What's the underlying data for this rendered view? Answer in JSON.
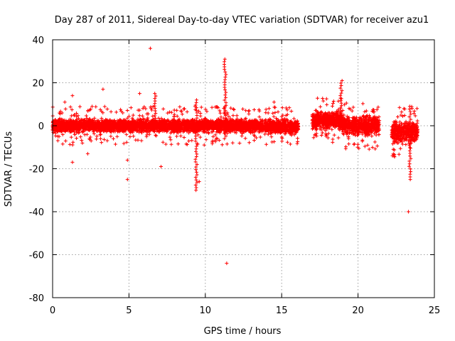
{
  "chart_data": {
    "type": "scatter",
    "title": "Day 287 of 2011, Sidereal Day-to-day VTEC variation (SDTVAR) for receiver azu1",
    "xlabel": "GPS time / hours",
    "ylabel": "SDTVAR / TECUs",
    "xlim": [
      0,
      25
    ],
    "ylim": [
      -80,
      40
    ],
    "x_ticks": [
      0,
      5,
      10,
      15,
      20,
      25
    ],
    "x_tick_labels": [
      "0",
      "5",
      "10",
      "15",
      "20",
      "25"
    ],
    "y_ticks": [
      -80,
      -60,
      -40,
      -20,
      0,
      20,
      40
    ],
    "y_tick_labels": [
      "-80",
      "-60",
      "-40",
      "-20",
      "0",
      "20",
      "40"
    ],
    "grid": true,
    "marker": "+",
    "series_color": "#ff0000",
    "series": [
      {
        "name": "SDTVAR",
        "band_segments": [
          {
            "x_start": 0.0,
            "x_end": 13.8,
            "y_low": -4,
            "y_high": 4
          },
          {
            "x_start": 13.9,
            "x_end": 16.1,
            "y_low": -5,
            "y_high": 4
          },
          {
            "x_start": 17.0,
            "x_end": 19.0,
            "y_low": -3,
            "y_high": 8
          },
          {
            "x_start": 19.0,
            "x_end": 21.4,
            "y_low": -6,
            "y_high": 6
          },
          {
            "x_start": 22.2,
            "x_end": 23.9,
            "y_low": -10,
            "y_high": 4
          }
        ],
        "spikes": [
          {
            "x": 9.4,
            "y_low": -30,
            "y_high": 12
          },
          {
            "x": 11.3,
            "y_low": -6,
            "y_high": 31
          },
          {
            "x": 18.9,
            "y_low": 0,
            "y_high": 21
          },
          {
            "x": 23.4,
            "y_low": -25,
            "y_high": 9
          },
          {
            "x": 6.7,
            "y_low": 0,
            "y_high": 15
          }
        ],
        "outliers": [
          {
            "x": 6.4,
            "y": 36
          },
          {
            "x": 11.4,
            "y": -64
          },
          {
            "x": 23.3,
            "y": -40
          },
          {
            "x": 4.9,
            "y": -25
          },
          {
            "x": 1.3,
            "y": -17
          },
          {
            "x": 7.1,
            "y": -19
          },
          {
            "x": 3.3,
            "y": 17
          },
          {
            "x": 1.3,
            "y": 14
          },
          {
            "x": 5.7,
            "y": 15
          },
          {
            "x": 14.5,
            "y": 11
          },
          {
            "x": 0.8,
            "y": 11
          },
          {
            "x": 2.3,
            "y": -13
          },
          {
            "x": 4.9,
            "y": -16
          },
          {
            "x": 9.6,
            "y": -26
          }
        ]
      }
    ]
  }
}
